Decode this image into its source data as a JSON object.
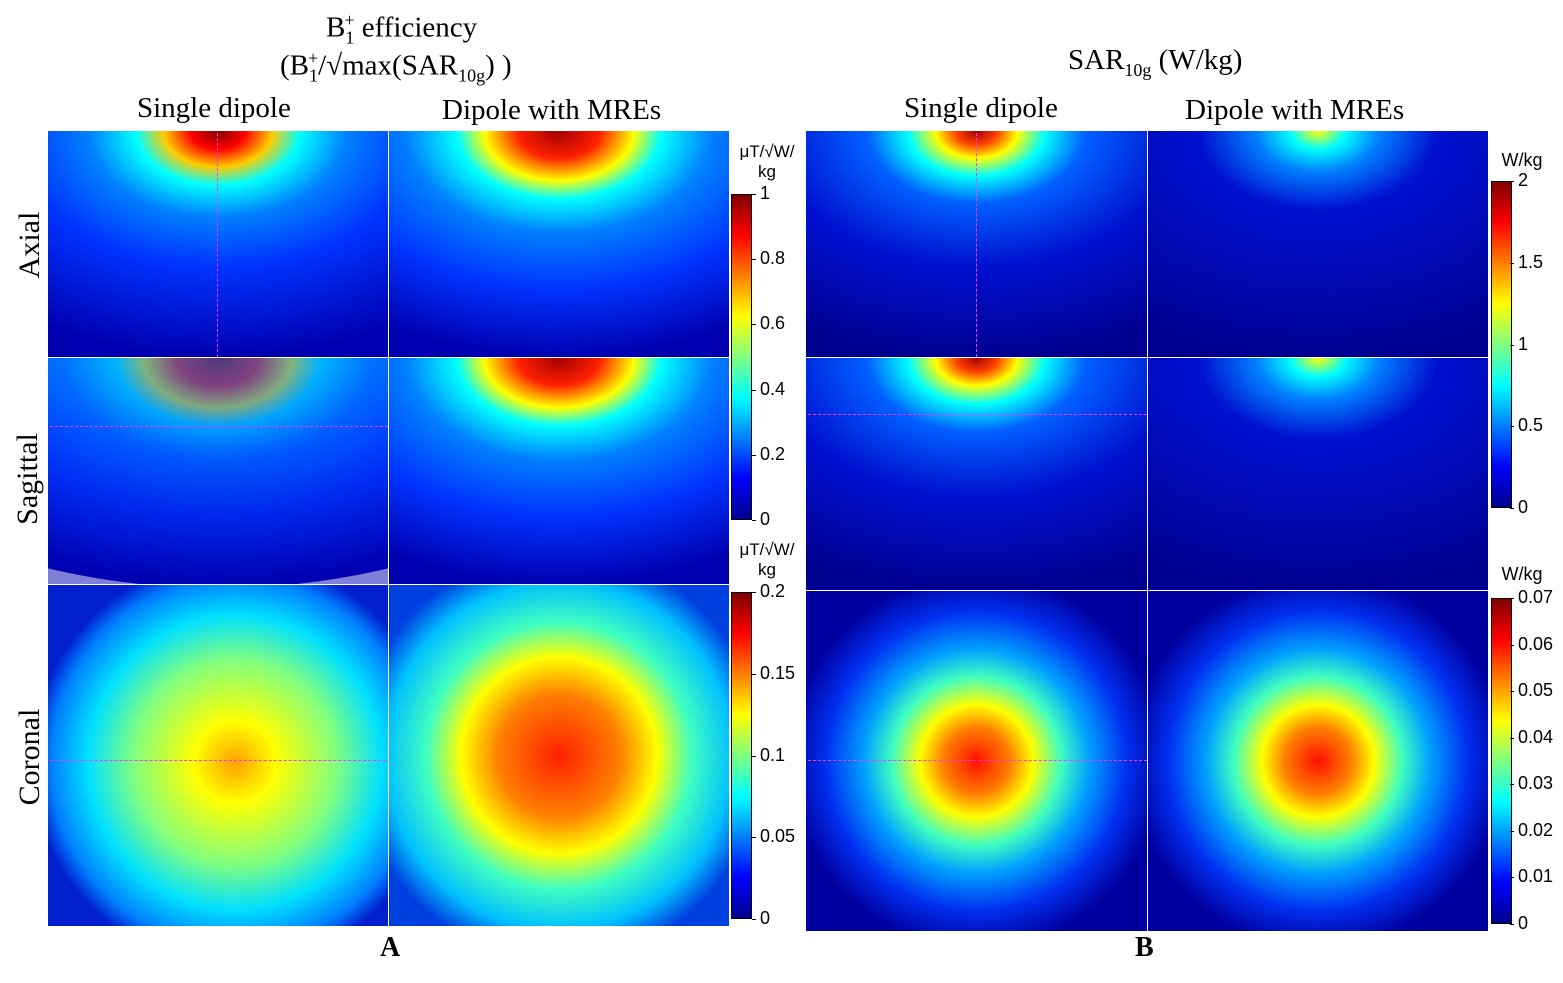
{
  "panel_a": {
    "title_b1": "B",
    "title_b1_sub": "1",
    "title_b1_sup": "+",
    "title_eff": " efficiency",
    "title_line2_open": "(B",
    "title_line2_sub": "1",
    "title_line2_sup": "+",
    "title_line2_mid": "/√max(SAR",
    "title_line2_sub2": "10g",
    "title_line2_close": ") )",
    "col1": "Single dipole",
    "col2": "Dipole with MREs",
    "letter": "A"
  },
  "panel_b": {
    "title_main": "SAR",
    "title_sub": "10g",
    "title_units": " (W/kg)",
    "col1": "Single dipole",
    "col2": "Dipole with MREs",
    "letter": "B"
  },
  "rows": {
    "axial": "Axial",
    "sagittal": "Sagittal",
    "coronal": "Coronal"
  },
  "colorbars": {
    "a_top_unit1": "μT/√W/",
    "a_top_unit2": "kg",
    "a_bottom_unit1": "μT/√W/",
    "a_bottom_unit2": "kg",
    "b_top_unit": "W/kg",
    "b_bottom_unit": "W/kg"
  },
  "colors": {
    "cmap": [
      "#00008f",
      "#0000ff",
      "#0080ff",
      "#00ffff",
      "#80ff80",
      "#ffff00",
      "#ff8000",
      "#ff0000",
      "#800000"
    ],
    "crosshair": "#ff33ff"
  },
  "chart_data": [
    {
      "type": "heatmap",
      "title": "B1+ efficiency (B1+/√max(SAR10g)) — Axial & Sagittal",
      "colormap": "jet",
      "colorbar_unit": "μT/√W/kg",
      "clim": [
        0,
        1
      ],
      "ticks": [
        {
          "value": 0,
          "label": "0"
        },
        {
          "value": 0.2,
          "label": "0.2"
        },
        {
          "value": 0.4,
          "label": "0.4"
        },
        {
          "value": 0.6,
          "label": "0.6"
        },
        {
          "value": 0.8,
          "label": "0.8"
        },
        {
          "value": 1,
          "label": "1"
        }
      ],
      "panels": [
        "Axial / Single dipole",
        "Axial / Dipole with MREs",
        "Sagittal / Single dipole",
        "Sagittal / Dipole with MREs"
      ],
      "peak_values": [
        1.0,
        0.9,
        1.0,
        0.95
      ]
    },
    {
      "type": "heatmap",
      "title": "B1+ efficiency — Coronal",
      "colormap": "jet",
      "colorbar_unit": "μT/√W/kg",
      "clim": [
        0,
        0.2
      ],
      "ticks": [
        {
          "value": 0,
          "label": "0"
        },
        {
          "value": 0.05,
          "label": "0.05"
        },
        {
          "value": 0.1,
          "label": "0.1"
        },
        {
          "value": 0.15,
          "label": "0.15"
        },
        {
          "value": 0.2,
          "label": "0.2"
        }
      ],
      "panels": [
        "Coronal / Single dipole",
        "Coronal / Dipole with MREs"
      ],
      "peak_values": [
        0.14,
        0.17
      ]
    },
    {
      "type": "heatmap",
      "title": "SAR10g (W/kg) — Axial & Sagittal",
      "colormap": "jet",
      "colorbar_unit": "W/kg",
      "clim": [
        0,
        2
      ],
      "ticks": [
        {
          "value": 0,
          "label": "0"
        },
        {
          "value": 0.5,
          "label": "0.5"
        },
        {
          "value": 1,
          "label": "1"
        },
        {
          "value": 1.5,
          "label": "1.5"
        },
        {
          "value": 2,
          "label": "2"
        }
      ],
      "panels": [
        "Axial / Single dipole",
        "Axial / Dipole with MREs",
        "Sagittal / Single dipole",
        "Sagittal / Dipole with MREs"
      ],
      "peak_values": [
        2.0,
        1.2,
        2.0,
        1.2
      ]
    },
    {
      "type": "heatmap",
      "title": "SAR10g (W/kg) — Coronal",
      "colormap": "jet",
      "colorbar_unit": "W/kg",
      "clim": [
        0,
        0.07
      ],
      "ticks": [
        {
          "value": 0,
          "label": "0"
        },
        {
          "value": 0.01,
          "label": "0.01"
        },
        {
          "value": 0.02,
          "label": "0.02"
        },
        {
          "value": 0.03,
          "label": "0.03"
        },
        {
          "value": 0.04,
          "label": "0.04"
        },
        {
          "value": 0.05,
          "label": "0.05"
        },
        {
          "value": 0.06,
          "label": "0.06"
        },
        {
          "value": 0.07,
          "label": "0.07"
        }
      ],
      "panels": [
        "Coronal / Single dipole",
        "Coronal / Dipole with MREs"
      ],
      "peak_values": [
        0.06,
        0.06
      ]
    }
  ]
}
